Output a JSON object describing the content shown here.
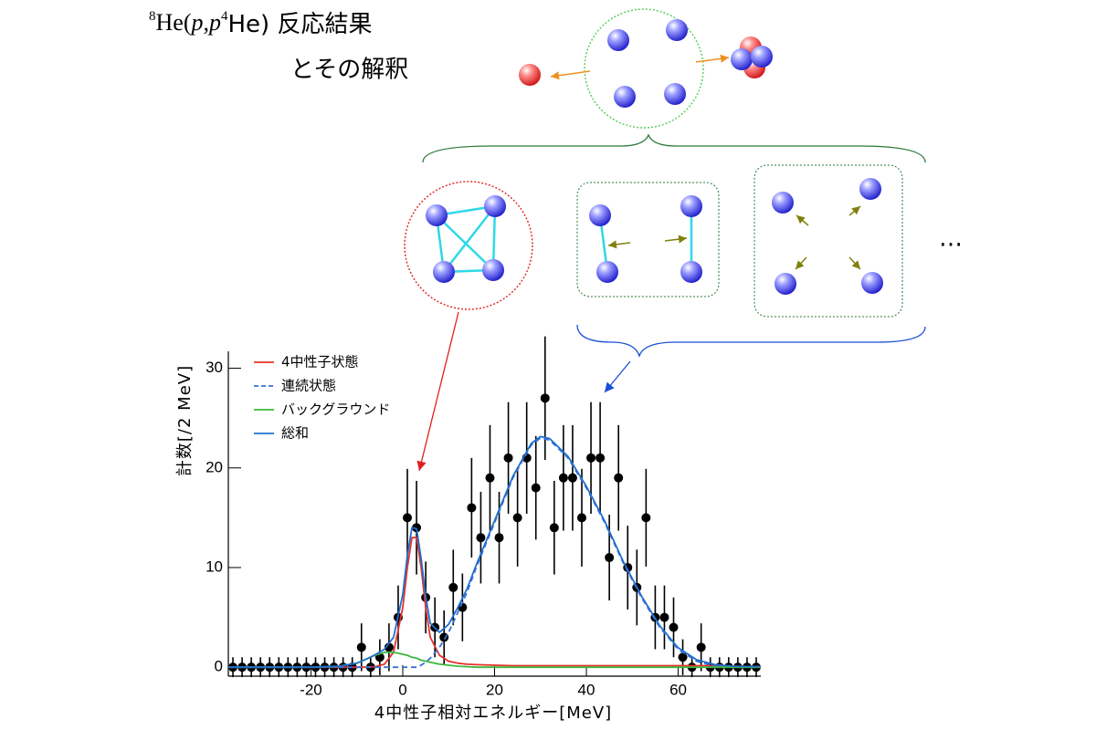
{
  "header": {
    "title_parts": [
      "8",
      "He(",
      "p,p",
      "4",
      "He) 反応結果",
      "とその解釈"
    ],
    "ellipsis": "…"
  },
  "chart_data": {
    "type": "line",
    "x_label": "4中性子相対エネルギー[MeV]",
    "y_label": "計数[/2 MeV]",
    "xlim": [
      -38,
      78
    ],
    "ylim": [
      -0.9,
      31.7
    ],
    "xticks": [
      -20,
      0,
      20,
      40,
      60
    ],
    "yticks": [
      0,
      10,
      20,
      30
    ],
    "legend": "top-left",
    "x": [
      -38,
      -30,
      -20,
      -14,
      -10,
      -8,
      -6,
      -4,
      -2,
      0,
      1,
      2,
      3,
      4,
      5,
      6,
      8,
      10,
      12,
      14,
      16,
      20,
      24,
      28,
      30,
      32,
      36,
      40,
      44,
      48,
      52,
      56,
      60,
      64,
      68,
      72,
      78
    ],
    "series": [
      {
        "name": "4中性子状態",
        "color": "#e8302a",
        "dashed": false,
        "values": [
          0,
          0,
          0,
          0,
          0,
          0,
          0.05,
          0.3,
          1.5,
          6,
          10,
          13,
          13,
          10,
          6,
          3,
          1.2,
          0.6,
          0.4,
          0.3,
          0.25,
          0.2,
          0.15,
          0.15,
          0.15,
          0.15,
          0.15,
          0.15,
          0.15,
          0.15,
          0.15,
          0.15,
          0.15,
          0.15,
          0.15,
          0.1,
          0.05
        ]
      },
      {
        "name": "連続状態",
        "color": "#3a6fd8",
        "dashed": true,
        "values": [
          0,
          0,
          0,
          0,
          0,
          0,
          0,
          0,
          0,
          0,
          0,
          0,
          0,
          0.2,
          0.5,
          0.9,
          2,
          3.5,
          5.5,
          7.5,
          10,
          14.5,
          19,
          22.3,
          23,
          22.8,
          21,
          18,
          14.5,
          10.5,
          7,
          4,
          1.8,
          0.6,
          0.1,
          0,
          0
        ]
      },
      {
        "name": "バックグラウンド",
        "color": "#3cb83c",
        "dashed": false,
        "values": [
          0,
          0,
          0,
          0.1,
          0.4,
          0.8,
          1.2,
          1.5,
          1.5,
          1.3,
          1.2,
          1.0,
          0.9,
          0.7,
          0.6,
          0.5,
          0.3,
          0.2,
          0.1,
          0.05,
          0,
          0,
          0,
          0,
          0,
          0,
          0,
          0,
          0,
          0,
          0,
          0,
          0,
          0,
          0,
          0,
          0
        ]
      },
      {
        "name": "総和",
        "color": "#1f6fd0",
        "dashed": false,
        "values": [
          0,
          0,
          0,
          0.1,
          0.4,
          0.8,
          1.25,
          1.8,
          3.0,
          7.3,
          11.2,
          14,
          13.9,
          10.9,
          7.1,
          4.4,
          3.5,
          4.3,
          6,
          7.85,
          10.25,
          14.7,
          19.15,
          22.45,
          23.15,
          22.95,
          21.15,
          18.15,
          14.65,
          10.65,
          7.15,
          4.15,
          1.95,
          0.75,
          0.25,
          0.1,
          0.05
        ]
      }
    ],
    "points": {
      "color": "#000000",
      "x": [
        -37,
        -35,
        -33,
        -31,
        -29,
        -27,
        -25,
        -23,
        -21,
        -19,
        -17,
        -15,
        -13,
        -11,
        -9,
        -7,
        -5,
        -3,
        -1,
        1,
        3,
        5,
        7,
        9,
        11,
        13,
        15,
        17,
        19,
        21,
        23,
        25,
        27,
        29,
        31,
        33,
        35,
        37,
        39,
        41,
        43,
        45,
        47,
        49,
        51,
        53,
        55,
        57,
        59,
        61,
        63,
        65,
        67,
        69,
        71,
        73,
        75,
        77
      ],
      "values": [
        0,
        0,
        0,
        0,
        0,
        0,
        0,
        0,
        0,
        0,
        0,
        0,
        0,
        0,
        2,
        0,
        1,
        2,
        5,
        15,
        14,
        7,
        4,
        3,
        8,
        6,
        16,
        13,
        19,
        13,
        21,
        15,
        21,
        18,
        27,
        14,
        19,
        19,
        15,
        21,
        21,
        11,
        19,
        10,
        8,
        15,
        5,
        5,
        4,
        1,
        0,
        2,
        0,
        0,
        0,
        0,
        0,
        0
      ],
      "errors": [
        1,
        1,
        1,
        1,
        1,
        1,
        1,
        1,
        1,
        1,
        1,
        1,
        1,
        1,
        2.4,
        1,
        1.8,
        2.4,
        3.2,
        4.9,
        4.7,
        3.6,
        3,
        2.7,
        3.8,
        3.4,
        5,
        4.6,
        5.3,
        4.6,
        5.6,
        4.9,
        5.6,
        5.2,
        6.2,
        4.7,
        5.3,
        5.3,
        4.9,
        5.6,
        5.6,
        4.3,
        5.3,
        4.2,
        3.8,
        4.9,
        3.2,
        3.2,
        3,
        1.8,
        1,
        2.4,
        1,
        1,
        1,
        1,
        1,
        1
      ]
    }
  }
}
